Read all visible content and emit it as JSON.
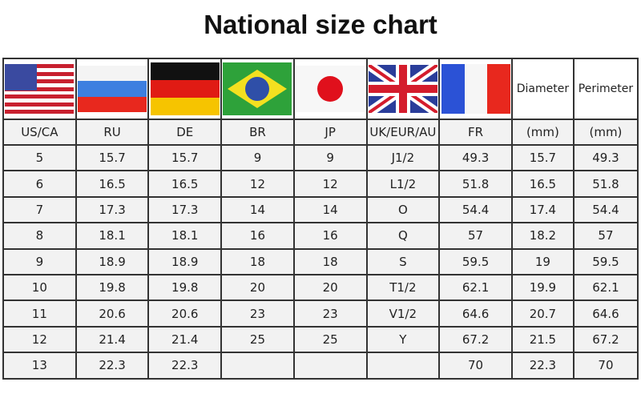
{
  "title": "National size chart",
  "flag_icons": [
    "us-flag",
    "ru-flag",
    "de-flag",
    "br-flag",
    "jp-flag",
    "uk-flag",
    "fr-flag"
  ],
  "flag_header_labels": {
    "diameter": "Diameter",
    "perimeter": "Perimeter"
  },
  "columns": [
    "US/CA",
    "RU",
    "DE",
    "BR",
    "JP",
    "UK/EUR/AU",
    "FR",
    "(mm)",
    "(mm)"
  ],
  "rows": [
    [
      "5",
      "15.7",
      "15.7",
      "9",
      "9",
      "J1/2",
      "49.3",
      "15.7",
      "49.3"
    ],
    [
      "6",
      "16.5",
      "16.5",
      "12",
      "12",
      "L1/2",
      "51.8",
      "16.5",
      "51.8"
    ],
    [
      "7",
      "17.3",
      "17.3",
      "14",
      "14",
      "O",
      "54.4",
      "17.4",
      "54.4"
    ],
    [
      "8",
      "18.1",
      "18.1",
      "16",
      "16",
      "Q",
      "57",
      "18.2",
      "57"
    ],
    [
      "9",
      "18.9",
      "18.9",
      "18",
      "18",
      "S",
      "59.5",
      "19",
      "59.5"
    ],
    [
      "10",
      "19.8",
      "19.8",
      "20",
      "20",
      "T1/2",
      "62.1",
      "19.9",
      "62.1"
    ],
    [
      "11",
      "20.6",
      "20.6",
      "23",
      "23",
      "V1/2",
      "64.6",
      "20.7",
      "64.6"
    ],
    [
      "12",
      "21.4",
      "21.4",
      "25",
      "25",
      "Y",
      "67.2",
      "21.5",
      "67.2"
    ],
    [
      "13",
      "22.3",
      "22.3",
      "",
      "",
      "",
      "70",
      "22.3",
      "70"
    ]
  ]
}
